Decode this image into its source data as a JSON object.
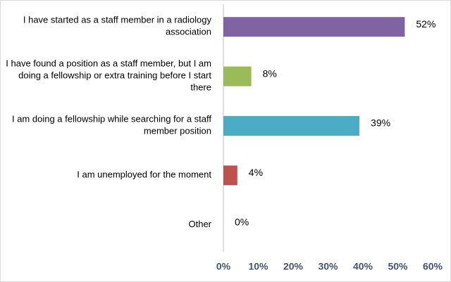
{
  "chart_data": {
    "type": "hbar",
    "categories": [
      "I have started as a staff member in a radiology association",
      "I have found a position as a staff member, but I am doing a fellowship or extra training before I start there",
      "I am doing a fellowship while searching for a staff member position",
      "I am unemployed for the moment",
      "Other"
    ],
    "values": [
      52,
      8,
      39,
      4,
      0
    ],
    "value_labels": [
      "52%",
      "8%",
      "39%",
      "4%",
      "0%"
    ],
    "colors": [
      "#8064a2",
      "#9bbb59",
      "#4bacc6",
      "#c0504d",
      "#f79646"
    ],
    "xlim": [
      0,
      60
    ],
    "xticks": [
      {
        "value": 0,
        "label": "0%"
      },
      {
        "value": 10,
        "label": "10%"
      },
      {
        "value": 20,
        "label": "20%"
      },
      {
        "value": 30,
        "label": "30%"
      },
      {
        "value": 40,
        "label": "40%"
      },
      {
        "value": 50,
        "label": "50%"
      },
      {
        "value": 60,
        "label": "60%"
      }
    ],
    "grid": false
  }
}
